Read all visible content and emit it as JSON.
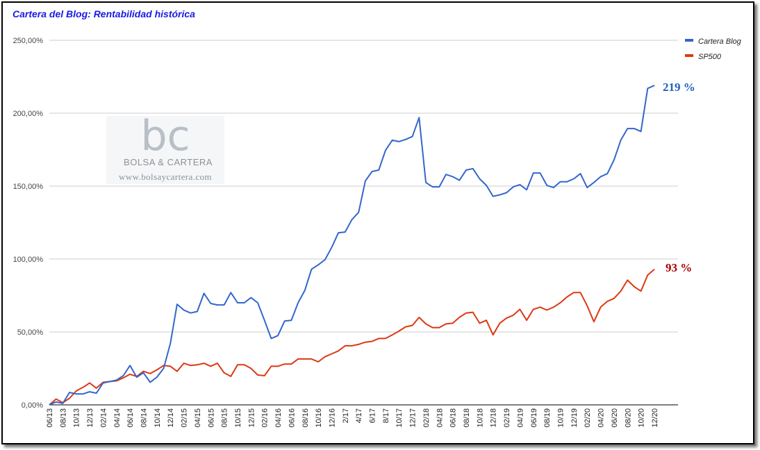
{
  "chart_data": {
    "type": "line",
    "title": "Cartera del Blog: Rentabilidad histórica",
    "xlabel": "",
    "ylabel": "",
    "ylim": [
      0,
      250
    ],
    "yticks": [
      "0,00%",
      "50,00%",
      "100,00%",
      "150,00%",
      "200,00%",
      "250,00%"
    ],
    "grid": "horizontal",
    "legend_position": "top-right",
    "x_tick_labels": [
      "06/13",
      "08/13",
      "10/13",
      "12/13",
      "02/14",
      "04/14",
      "06/14",
      "08/14",
      "10/14",
      "12/14",
      "02/15",
      "04/15",
      "06/15",
      "08/15",
      "10/15",
      "12/15",
      "02/16",
      "04/16",
      "06/16",
      "08/16",
      "10/16",
      "12/16",
      "2/17",
      "4/17",
      "6/17",
      "8/17",
      "10/17",
      "12/17",
      "02/18",
      "04/18",
      "06/18",
      "08/18",
      "10/18",
      "12/18",
      "02/19",
      "04/19",
      "06/19",
      "08/19",
      "10/19",
      "12/19",
      "02/20",
      "04/20",
      "06/20",
      "08/20",
      "10/20",
      "12/20"
    ],
    "series": [
      {
        "name": "Cartera Blog",
        "color": "#3366cc",
        "values": [
          0,
          2,
          1,
          8.5,
          7.5,
          7.5,
          9,
          8,
          15,
          16,
          17,
          20,
          27,
          19,
          22,
          15.5,
          19,
          25,
          42,
          69,
          65,
          63,
          64,
          76.5,
          69.5,
          68.5,
          68.5,
          77,
          70,
          70,
          73.5,
          70,
          58,
          45.5,
          47.5,
          57.5,
          58,
          70,
          78.5,
          93,
          96,
          99.5,
          108,
          118,
          118.5,
          127,
          132,
          153.5,
          160,
          161,
          174.5,
          181.5,
          180.5,
          182,
          184,
          197,
          152.5,
          149.5,
          149.5,
          158,
          156.5,
          154,
          161,
          162,
          155,
          150.5,
          143,
          144,
          145.5,
          149.5,
          151,
          147.5,
          159,
          159,
          150.5,
          149,
          153,
          153,
          155,
          158.5,
          149,
          152.5,
          156.5,
          158.5,
          168,
          181.5,
          189.5,
          189.5,
          187.5,
          217,
          219
        ]
      },
      {
        "name": "SP500",
        "color": "#dc3912",
        "values": [
          0,
          4,
          1.5,
          4.5,
          9.5,
          12,
          15,
          11.5,
          15.5,
          16,
          16.5,
          18.5,
          21,
          19.5,
          23,
          21.5,
          24,
          27,
          26.5,
          23,
          28.5,
          27,
          27.5,
          28.5,
          26.5,
          28.5,
          22,
          19.5,
          27.5,
          27.5,
          25,
          20.5,
          20,
          26.5,
          26.5,
          28,
          28,
          31.5,
          31.5,
          31.5,
          29.5,
          33,
          35,
          37,
          40.5,
          40.5,
          41.5,
          43,
          43.5,
          45.5,
          45.5,
          48,
          50.5,
          53.5,
          54.5,
          60,
          55.5,
          53,
          53,
          55.5,
          56,
          60,
          63,
          63.5,
          56,
          58,
          48,
          56,
          59.5,
          61.5,
          65.5,
          58,
          65.5,
          67,
          65,
          67,
          70,
          74,
          77,
          77,
          68,
          57,
          67,
          71,
          73,
          78,
          85.5,
          81,
          78,
          89,
          93
        ]
      }
    ],
    "annotations": [
      {
        "text": "219 %",
        "series": "Cartera Blog",
        "color": "#1f5fbf"
      },
      {
        "text": "93 %",
        "series": "SP500",
        "color": "#a80000"
      }
    ]
  },
  "watermark": {
    "logo": "bc",
    "name": "BOLSA & CARTERA",
    "url": "www.bolsaycartera.com"
  }
}
